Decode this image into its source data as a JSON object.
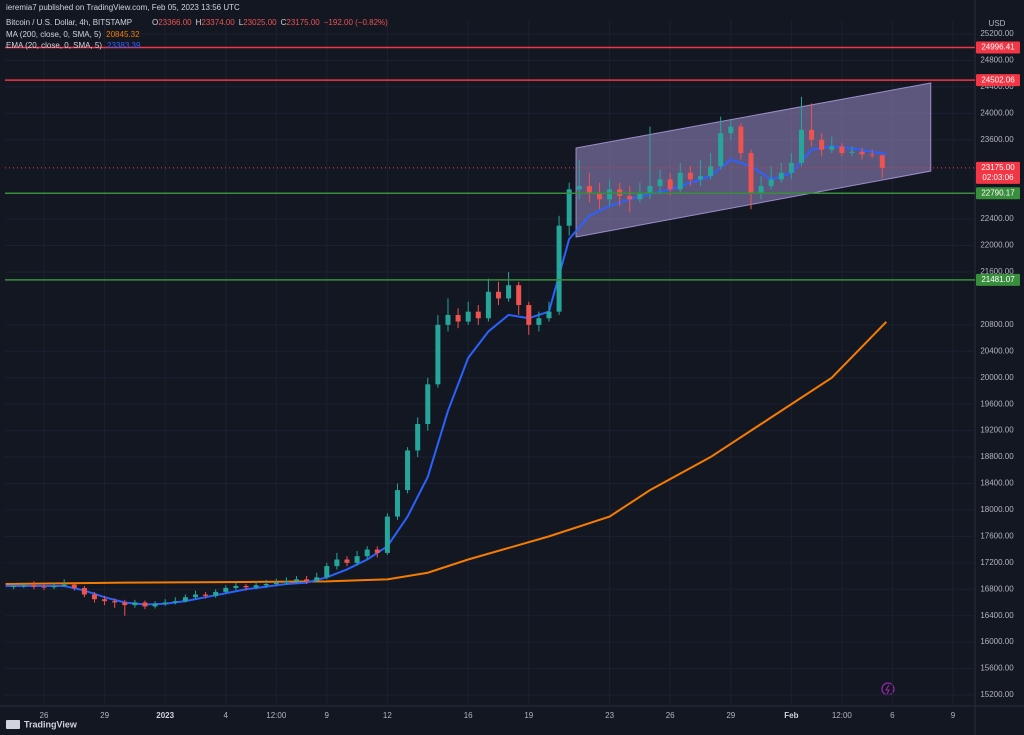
{
  "header": "ieremia7 published on TradingView.com, Feb 05, 2023 13:56 UTC",
  "footer_logo": "TradingView",
  "chart_data": {
    "type": "candlestick",
    "title": "Bitcoin / U.S. Dollar, 4h, BITSTAMP",
    "quote": [
      {
        "label": "O",
        "value": "23366.00"
      },
      {
        "label": "H",
        "value": "23374.00"
      },
      {
        "label": "L",
        "value": "23025.00"
      },
      {
        "label": "C",
        "value": "23175.00"
      }
    ],
    "change": "−192.00 (−0.82%)",
    "currency": "USD",
    "up_color": "#26a69a",
    "down_color": "#ef5350",
    "grid": true,
    "x": [
      -1.5,
      -1,
      -0.5,
      0,
      0.5,
      1,
      1.5,
      2,
      2.5,
      3,
      3.5,
      4,
      4.5,
      5,
      5.5,
      6,
      6.5,
      7,
      7.5,
      8,
      8.5,
      9,
      9.5,
      10,
      10.5,
      11,
      11.5,
      12,
      12.5,
      13,
      13.5,
      14,
      14.5,
      15,
      15.5,
      16,
      16.5,
      17,
      17.5,
      18,
      18.5,
      19,
      19.5,
      20,
      20.5,
      21,
      21.5,
      22,
      22.5,
      23,
      23.5,
      24,
      24.5,
      25,
      25.5,
      26,
      26.5,
      27,
      27.5,
      28,
      28.5,
      29,
      29.5,
      30,
      30.5,
      31,
      31.5,
      32,
      32.5,
      33,
      33.5,
      34,
      34.5,
      35,
      35.5,
      36,
      36.5,
      37,
      37.5,
      38,
      38.5,
      39,
      39.5,
      40,
      40.5,
      41,
      41.5
    ],
    "open": [
      16840,
      16850,
      16860,
      16840,
      16830,
      16850,
      16870,
      16820,
      16720,
      16650,
      16620,
      16600,
      16560,
      16600,
      16540,
      16580,
      16600,
      16620,
      16680,
      16720,
      16700,
      16760,
      16820,
      16850,
      16830,
      16860,
      16880,
      16900,
      16920,
      16950,
      16930,
      16980,
      17150,
      17250,
      17200,
      17300,
      17400,
      17350,
      17900,
      18300,
      18900,
      19300,
      19900,
      20800,
      20950,
      20850,
      21000,
      20900,
      21300,
      21200,
      21400,
      21100,
      20800,
      20900,
      21000,
      22300,
      22850,
      22900,
      22800,
      22700,
      22850,
      22750,
      22700,
      22800,
      22900,
      23000,
      22850,
      23100,
      23000,
      23050,
      23200,
      23700,
      23800,
      23400,
      22800,
      22900,
      23000,
      23100,
      23250,
      23750,
      23600,
      23450,
      23500,
      23400,
      23420,
      23380,
      23366
    ],
    "high": [
      16890,
      16900,
      16920,
      16880,
      16900,
      16950,
      16900,
      16850,
      16760,
      16700,
      16660,
      16640,
      16640,
      16630,
      16620,
      16650,
      16680,
      16720,
      16780,
      16760,
      16800,
      16860,
      16900,
      16880,
      16920,
      16940,
      16960,
      16980,
      17000,
      17000,
      17050,
      17200,
      17350,
      17300,
      17380,
      17450,
      17450,
      17950,
      18400,
      18950,
      19400,
      20000,
      20950,
      21200,
      21050,
      21150,
      21100,
      21500,
      21450,
      21600,
      21450,
      21150,
      21000,
      21150,
      22450,
      22950,
      23300,
      23100,
      22950,
      23000,
      22950,
      22900,
      22950,
      23800,
      23150,
      23100,
      23250,
      23200,
      23300,
      23400,
      23950,
      23900,
      23850,
      23450,
      23050,
      23200,
      23250,
      23400,
      24250,
      24150,
      23700,
      23650,
      23550,
      23500,
      23480,
      23450,
      23374
    ],
    "low": [
      16800,
      16820,
      16800,
      16790,
      16800,
      16830,
      16780,
      16680,
      16600,
      16560,
      16520,
      16400,
      16520,
      16500,
      16510,
      16550,
      16570,
      16600,
      16650,
      16660,
      16670,
      16740,
      16790,
      16780,
      16800,
      16820,
      16850,
      16870,
      16890,
      16880,
      16900,
      16950,
      17100,
      17150,
      17160,
      17250,
      17280,
      17320,
      17850,
      18250,
      18800,
      19200,
      19850,
      20700,
      20750,
      20800,
      20800,
      20850,
      21100,
      21150,
      20950,
      20650,
      20700,
      20850,
      20950,
      22150,
      22700,
      22650,
      22550,
      22600,
      22600,
      22500,
      22650,
      22700,
      22800,
      22750,
      22800,
      22900,
      22900,
      23000,
      23150,
      23600,
      23300,
      22550,
      22700,
      22850,
      22950,
      23000,
      23200,
      23500,
      23350,
      23400,
      23350,
      23350,
      23300,
      23320,
      23025
    ],
    "close": [
      16850,
      16860,
      16840,
      16830,
      16850,
      16870,
      16820,
      16720,
      16650,
      16620,
      16600,
      16560,
      16600,
      16540,
      16580,
      16600,
      16620,
      16680,
      16720,
      16700,
      16760,
      16820,
      16850,
      16830,
      16860,
      16880,
      16900,
      16920,
      16950,
      16930,
      16980,
      17150,
      17250,
      17200,
      17300,
      17400,
      17350,
      17900,
      18300,
      18900,
      19300,
      19900,
      20800,
      20950,
      20850,
      21000,
      20900,
      21300,
      21200,
      21400,
      21100,
      20800,
      20900,
      21000,
      22300,
      22850,
      22900,
      22800,
      22700,
      22850,
      22750,
      22700,
      22800,
      22900,
      23000,
      22850,
      23100,
      23000,
      23050,
      23200,
      23700,
      23800,
      23400,
      22800,
      22900,
      23000,
      23100,
      23250,
      23750,
      23600,
      23450,
      23500,
      23400,
      23420,
      23380,
      23366,
      23175
    ],
    "indicators": [
      {
        "name": "MA (200, close, 0, SMA, 5)",
        "last_label": "20845.32",
        "color": "#f57c00",
        "x": [
          -1.9,
          4,
          10,
          14,
          17,
          19,
          21,
          25,
          28,
          30,
          33,
          36,
          39,
          41.7
        ],
        "values": [
          16880,
          16900,
          16910,
          16920,
          16950,
          17050,
          17250,
          17600,
          17900,
          18300,
          18800,
          19400,
          20000,
          20845.32
        ]
      },
      {
        "name": "EMA (20, close, 0, SMA, 5)",
        "last_label": "23383.39",
        "color": "#2962ff",
        "x": [
          -1.9,
          1,
          2,
          3,
          4,
          5,
          6,
          7,
          8,
          9,
          10,
          11,
          12,
          13,
          14,
          15,
          16,
          17,
          18,
          19,
          20,
          21,
          22,
          23,
          24,
          25,
          26,
          27,
          28,
          29,
          30,
          31,
          32,
          33,
          34,
          35,
          36,
          37,
          38,
          39,
          40,
          41,
          41.7
        ],
        "values": [
          16850,
          16850,
          16780,
          16680,
          16600,
          16570,
          16580,
          16620,
          16680,
          16740,
          16800,
          16840,
          16880,
          16900,
          16980,
          17100,
          17250,
          17450,
          17900,
          18500,
          19500,
          20300,
          20700,
          20950,
          20900,
          21000,
          22100,
          22450,
          22600,
          22700,
          22780,
          22850,
          22950,
          23050,
          23300,
          23200,
          23000,
          23100,
          23450,
          23500,
          23470,
          23420,
          23383.39
        ]
      }
    ],
    "levels": [
      {
        "value": 24996.41,
        "color": "#f23645"
      },
      {
        "value": 24502.06,
        "color": "#f23645"
      },
      {
        "value": 22790.17,
        "color": "#388e3c"
      },
      {
        "value": 21481.07,
        "color": "#388e3c"
      }
    ],
    "last_price": {
      "value": 23175,
      "label": "23175.00",
      "countdown": "02:03:06",
      "color": "#f23645"
    },
    "channel": {
      "x": [
        26.34,
        43.9,
        43.9,
        26.34
      ],
      "values": [
        23475,
        24459,
        23127,
        22129
      ],
      "color": "#9c8dc9"
    },
    "xlim": [
      -1.93,
      46.09
    ],
    "xticks": [
      {
        "value": 0,
        "label": "26"
      },
      {
        "value": 3,
        "label": "29"
      },
      {
        "value": 6,
        "label": "2023"
      },
      {
        "value": 9,
        "label": "4"
      },
      {
        "value": 11.5,
        "label": "12:00"
      },
      {
        "value": 14,
        "label": "9"
      },
      {
        "value": 17,
        "label": "12"
      },
      {
        "value": 21,
        "label": "16"
      },
      {
        "value": 24,
        "label": "19"
      },
      {
        "value": 28,
        "label": "23"
      },
      {
        "value": 31,
        "label": "26"
      },
      {
        "value": 34,
        "label": "29"
      },
      {
        "value": 37,
        "label": "Feb"
      },
      {
        "value": 39.5,
        "label": "12:00"
      },
      {
        "value": 42,
        "label": "6"
      },
      {
        "value": 45,
        "label": "9"
      }
    ],
    "ylim": [
      15049,
      25412
    ],
    "yticks": [
      {
        "value": 25200,
        "label": "25200.00"
      },
      {
        "value": 24800,
        "label": "24800.00"
      },
      {
        "value": 24400,
        "label": "24400.00"
      },
      {
        "value": 24000,
        "label": "24000.00"
      },
      {
        "value": 23600,
        "label": "23600.00"
      },
      {
        "value": 22400,
        "label": "22400.00"
      },
      {
        "value": 22000,
        "label": "22000.00"
      },
      {
        "value": 21600,
        "label": "21600.00"
      },
      {
        "value": 20800,
        "label": "20800.00"
      },
      {
        "value": 20400,
        "label": "20400.00"
      },
      {
        "value": 20000,
        "label": "20000.00"
      },
      {
        "value": 19600,
        "label": "19600.00"
      },
      {
        "value": 19200,
        "label": "19200.00"
      },
      {
        "value": 18800,
        "label": "18800.00"
      },
      {
        "value": 18400,
        "label": "18400.00"
      },
      {
        "value": 18000,
        "label": "18000.00"
      },
      {
        "value": 17600,
        "label": "17600.00"
      },
      {
        "value": 17200,
        "label": "17200.00"
      },
      {
        "value": 16800,
        "label": "16800.00"
      },
      {
        "value": 16400,
        "label": "16400.00"
      },
      {
        "value": 16000,
        "label": "16000.00"
      },
      {
        "value": 15600,
        "label": "15600.00"
      },
      {
        "value": 15200,
        "label": "15200.00"
      }
    ]
  }
}
